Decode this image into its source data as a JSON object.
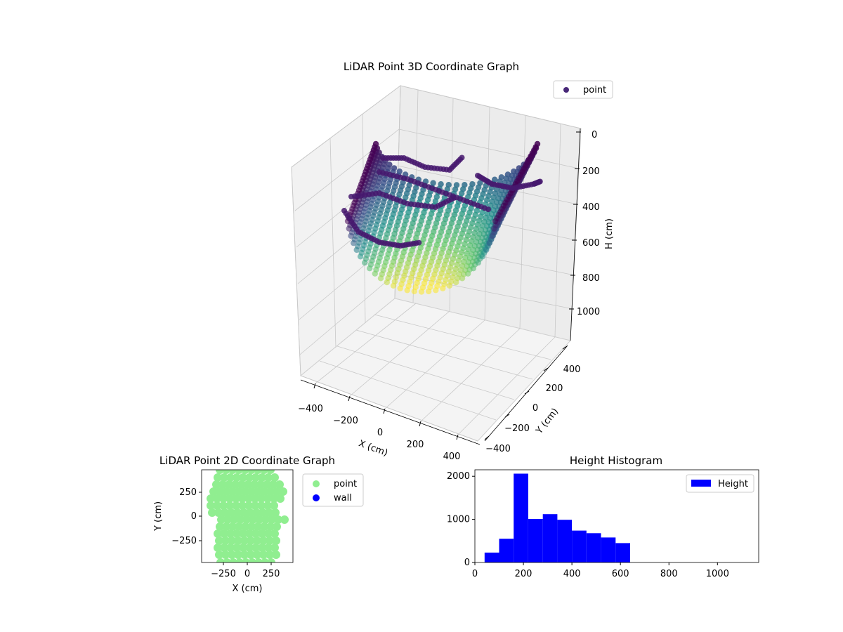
{
  "chart_data": [
    {
      "type": "scatter3d",
      "title": "LiDAR Point 3D Coordinate Graph",
      "xlabel": "X (cm)",
      "ylabel": "Y (cm)",
      "zlabel": "H (cm)",
      "x_ticks": [
        "−400",
        "−200",
        "0",
        "200",
        "400"
      ],
      "y_ticks": [
        "−400",
        "−200",
        "0",
        "200",
        "400"
      ],
      "z_ticks": [
        "0",
        "200",
        "400",
        "600",
        "800",
        "1000"
      ],
      "xlim": [
        -450,
        450
      ],
      "ylim": [
        -450,
        450
      ],
      "zlim": [
        0,
        1100
      ],
      "z_inverted": true,
      "colormap": "viridis",
      "legend": {
        "placement": "top-right",
        "entries": [
          {
            "label": "point",
            "color": "#482878"
          }
        ]
      },
      "grid": true
    },
    {
      "type": "scatter",
      "title": "LiDAR Point 2D Coordinate Graph",
      "xlabel": "X (cm)",
      "ylabel": "Y (cm)",
      "x_ticks": [
        "−250",
        "0",
        "250"
      ],
      "y_ticks": [
        "250",
        "0",
        "−250"
      ],
      "xlim": [
        -480,
        480
      ],
      "ylim": [
        -480,
        480
      ],
      "series": [
        {
          "name": "point",
          "color": "#90ee90"
        },
        {
          "name": "wall",
          "color": "#0000ff"
        }
      ],
      "legend": {
        "placement": "outside-right"
      }
    },
    {
      "type": "bar",
      "title": "Height Histogram",
      "x_ticks": [
        "0",
        "200",
        "400",
        "600",
        "800",
        "1000"
      ],
      "y_ticks": [
        "0",
        "1000",
        "2000"
      ],
      "xlim": [
        0,
        1170
      ],
      "ylim": [
        0,
        2150
      ],
      "bin_edges": [
        40,
        100,
        160,
        220,
        280,
        340,
        400,
        460,
        520,
        580,
        640
      ],
      "values": [
        230,
        550,
        2060,
        1010,
        1120,
        990,
        740,
        680,
        580,
        450
      ],
      "color": "#0000ff",
      "series": [
        {
          "name": "Height"
        }
      ],
      "legend": {
        "placement": "top-right"
      }
    }
  ]
}
